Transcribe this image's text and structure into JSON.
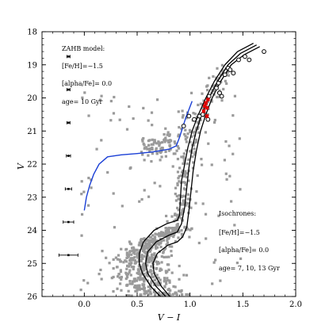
{
  "chart_data": {
    "type": "scatter",
    "title": "",
    "xlabel": "V − I",
    "ylabel": "V",
    "xlim": [
      -0.4,
      2.0
    ],
    "ylim": [
      26,
      18
    ],
    "y_inverted": true,
    "grid": false,
    "x_ticks": [
      "0.0",
      "0.5",
      "1.0",
      "1.5",
      "2.0"
    ],
    "y_ticks": [
      "18",
      "19",
      "20",
      "21",
      "22",
      "23",
      "24",
      "25",
      "26"
    ],
    "zahb_model": {
      "heading": "ZAHB model:",
      "feh": "[Fe/H]=−1.5",
      "alpha": "[alpha/Fe]= 0.0",
      "age": "age= 10 Gyr",
      "color": "#1a3fd6",
      "curve": [
        [
          0.0,
          23.4
        ],
        [
          0.02,
          23.0
        ],
        [
          0.05,
          22.65
        ],
        [
          0.09,
          22.3
        ],
        [
          0.14,
          22.0
        ],
        [
          0.22,
          21.78
        ],
        [
          0.35,
          21.72
        ],
        [
          0.5,
          21.68
        ],
        [
          0.65,
          21.63
        ],
        [
          0.8,
          21.55
        ],
        [
          0.87,
          21.45
        ],
        [
          0.9,
          21.2
        ],
        [
          0.93,
          20.9
        ],
        [
          0.96,
          20.6
        ],
        [
          0.99,
          20.35
        ],
        [
          1.02,
          20.1
        ]
      ]
    },
    "isochrones": {
      "heading": "Isochrones:",
      "feh": "[Fe/H]=−1.5",
      "alpha": "[alpha/Fe]= 0.0",
      "age": "age= 7, 10, 13 Gyr",
      "color": "#000000",
      "curves": [
        [
          [
            0.72,
            26.0
          ],
          [
            0.63,
            25.7
          ],
          [
            0.55,
            25.3
          ],
          [
            0.52,
            25.0
          ],
          [
            0.52,
            24.7
          ],
          [
            0.56,
            24.35
          ],
          [
            0.66,
            24.0
          ],
          [
            0.78,
            23.8
          ],
          [
            0.88,
            23.7
          ],
          [
            0.9,
            23.55
          ],
          [
            0.91,
            23.0
          ],
          [
            0.92,
            22.5
          ],
          [
            0.95,
            22.0
          ],
          [
            0.98,
            21.5
          ],
          [
            1.02,
            21.0
          ],
          [
            1.08,
            20.5
          ],
          [
            1.15,
            20.0
          ],
          [
            1.23,
            19.5
          ],
          [
            1.33,
            19.0
          ],
          [
            1.45,
            18.6
          ],
          [
            1.6,
            18.35
          ]
        ],
        [
          [
            0.77,
            26.0
          ],
          [
            0.68,
            25.7
          ],
          [
            0.6,
            25.3
          ],
          [
            0.58,
            25.0
          ],
          [
            0.6,
            24.65
          ],
          [
            0.68,
            24.35
          ],
          [
            0.8,
            24.15
          ],
          [
            0.88,
            24.05
          ],
          [
            0.92,
            23.8
          ],
          [
            0.95,
            23.3
          ],
          [
            0.97,
            22.7
          ],
          [
            0.99,
            22.1
          ],
          [
            1.02,
            21.5
          ],
          [
            1.06,
            21.0
          ],
          [
            1.11,
            20.5
          ],
          [
            1.18,
            20.0
          ],
          [
            1.26,
            19.5
          ],
          [
            1.36,
            19.0
          ],
          [
            1.48,
            18.65
          ],
          [
            1.63,
            18.4
          ]
        ],
        [
          [
            0.81,
            26.0
          ],
          [
            0.73,
            25.7
          ],
          [
            0.66,
            25.3
          ],
          [
            0.65,
            25.0
          ],
          [
            0.69,
            24.7
          ],
          [
            0.79,
            24.45
          ],
          [
            0.88,
            24.35
          ],
          [
            0.93,
            24.2
          ],
          [
            0.97,
            23.9
          ],
          [
            0.99,
            23.4
          ],
          [
            1.01,
            22.8
          ],
          [
            1.03,
            22.2
          ],
          [
            1.06,
            21.6
          ],
          [
            1.1,
            21.0
          ],
          [
            1.15,
            20.5
          ],
          [
            1.21,
            20.0
          ],
          [
            1.29,
            19.5
          ],
          [
            1.39,
            19.0
          ],
          [
            1.51,
            18.7
          ],
          [
            1.66,
            18.45
          ]
        ]
      ]
    },
    "error_bars": {
      "x": -0.15,
      "points": [
        {
          "y": 18.75,
          "xerr": 0.015
        },
        {
          "y": 19.75,
          "xerr": 0.015
        },
        {
          "y": 20.75,
          "xerr": 0.015
        },
        {
          "y": 21.75,
          "xerr": 0.02
        },
        {
          "y": 22.75,
          "xerr": 0.03
        },
        {
          "y": 23.75,
          "xerr": 0.05
        },
        {
          "y": 24.75,
          "xerr": 0.09
        }
      ]
    },
    "open_circles": {
      "color": "#000000",
      "points": [
        [
          0.94,
          20.85
        ],
        [
          0.99,
          20.55
        ],
        [
          1.04,
          20.65
        ],
        [
          1.09,
          20.55
        ],
        [
          1.12,
          20.5
        ],
        [
          1.17,
          20.65
        ],
        [
          1.18,
          19.95
        ],
        [
          1.25,
          19.7
        ],
        [
          1.27,
          19.55
        ],
        [
          1.28,
          19.85
        ],
        [
          1.3,
          19.95
        ],
        [
          1.33,
          19.3
        ],
        [
          1.36,
          19.1
        ],
        [
          1.38,
          19.15
        ],
        [
          1.41,
          19.25
        ],
        [
          1.46,
          18.85
        ],
        [
          1.52,
          18.75
        ],
        [
          1.56,
          18.85
        ],
        [
          1.7,
          18.6
        ]
      ]
    },
    "red_stars": {
      "color": "#e00000",
      "points": [
        [
          1.13,
          20.4
        ],
        [
          1.14,
          20.25
        ],
        [
          1.15,
          20.15
        ],
        [
          1.16,
          20.3
        ],
        [
          1.17,
          20.05
        ],
        [
          1.16,
          20.55
        ]
      ]
    },
    "background_stars": {
      "color": "#9a9a9a",
      "count": 950,
      "seed": 7
    }
  }
}
